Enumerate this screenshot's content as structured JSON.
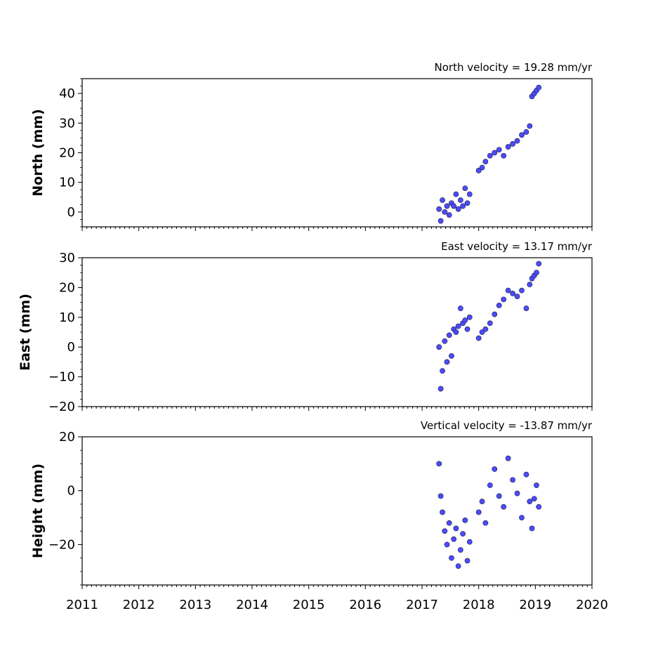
{
  "chart_data": [
    {
      "type": "scatter",
      "title": "North velocity = 19.28 mm/yr",
      "xlabel": "",
      "ylabel": "North (mm)",
      "xlim": [
        2011,
        2020
      ],
      "ylim": [
        -5,
        45
      ],
      "yticks": [
        0,
        10,
        20,
        30,
        40
      ],
      "yticklabels": [
        "0",
        "10",
        "20",
        "30",
        "40"
      ],
      "grid": false,
      "marker_color": "#4b4bff",
      "series": [
        {
          "x": [
            2017.3,
            2017.33,
            2017.36,
            2017.4,
            2017.44,
            2017.48,
            2017.52,
            2017.56,
            2017.6,
            2017.64,
            2017.68,
            2017.72,
            2017.76,
            2017.8,
            2017.84,
            2018.0,
            2018.06,
            2018.12,
            2018.2,
            2018.28,
            2018.36,
            2018.44,
            2018.52,
            2018.6,
            2018.68,
            2018.76,
            2018.84,
            2018.9,
            2018.94,
            2018.98,
            2019.02,
            2019.06
          ],
          "y": [
            1,
            -3,
            4,
            0,
            2,
            -1,
            3,
            2,
            6,
            1,
            4,
            2,
            8,
            3,
            6,
            14,
            15,
            17,
            19,
            20,
            21,
            19,
            22,
            23,
            24,
            26,
            27,
            29,
            39,
            40,
            41,
            42
          ]
        }
      ]
    },
    {
      "type": "scatter",
      "title": "East velocity = 13.17 mm/yr",
      "xlabel": "",
      "ylabel": "East (mm)",
      "xlim": [
        2011,
        2020
      ],
      "ylim": [
        -20,
        30
      ],
      "yticks": [
        -20,
        -10,
        0,
        10,
        20,
        30
      ],
      "yticklabels": [
        "−20",
        "−10",
        "0",
        "10",
        "20",
        "30"
      ],
      "grid": false,
      "marker_color": "#4b4bff",
      "series": [
        {
          "x": [
            2017.3,
            2017.33,
            2017.36,
            2017.4,
            2017.44,
            2017.48,
            2017.52,
            2017.56,
            2017.6,
            2017.64,
            2017.68,
            2017.72,
            2017.76,
            2017.8,
            2017.84,
            2018.0,
            2018.06,
            2018.12,
            2018.2,
            2018.28,
            2018.36,
            2018.44,
            2018.52,
            2018.6,
            2018.68,
            2018.76,
            2018.84,
            2018.9,
            2018.94,
            2018.98,
            2019.02,
            2019.06
          ],
          "y": [
            0,
            -14,
            -8,
            2,
            -5,
            4,
            -3,
            6,
            5,
            7,
            13,
            8,
            9,
            6,
            10,
            3,
            5,
            6,
            8,
            11,
            14,
            16,
            19,
            18,
            17,
            19,
            13,
            21,
            23,
            24,
            25,
            28
          ]
        }
      ]
    },
    {
      "type": "scatter",
      "title": "Vertical velocity = -13.87 mm/yr",
      "xlabel": "",
      "ylabel": "Height (mm)",
      "xlim": [
        2011,
        2020
      ],
      "ylim": [
        -35,
        20
      ],
      "yticks": [
        -20,
        0,
        20
      ],
      "yticklabels": [
        "−20",
        "0",
        "20"
      ],
      "xticks": [
        2011,
        2012,
        2013,
        2014,
        2015,
        2016,
        2017,
        2018,
        2019,
        2020
      ],
      "xticklabels": [
        "2011",
        "2012",
        "2013",
        "2014",
        "2015",
        "2016",
        "2017",
        "2018",
        "2019",
        "2020"
      ],
      "grid": false,
      "marker_color": "#4b4bff",
      "series": [
        {
          "x": [
            2017.3,
            2017.33,
            2017.36,
            2017.4,
            2017.44,
            2017.48,
            2017.52,
            2017.56,
            2017.6,
            2017.64,
            2017.68,
            2017.72,
            2017.76,
            2017.8,
            2017.84,
            2018.0,
            2018.06,
            2018.12,
            2018.2,
            2018.28,
            2018.36,
            2018.44,
            2018.52,
            2018.6,
            2018.68,
            2018.76,
            2018.84,
            2018.9,
            2018.94,
            2018.98,
            2019.02,
            2019.06
          ],
          "y": [
            10,
            -2,
            -8,
            -15,
            -20,
            -12,
            -25,
            -18,
            -14,
            -28,
            -22,
            -16,
            -11,
            -26,
            -19,
            -8,
            -4,
            -12,
            2,
            8,
            -2,
            -6,
            12,
            4,
            -1,
            -10,
            6,
            -4,
            -14,
            -3,
            2,
            -6
          ]
        }
      ]
    }
  ]
}
